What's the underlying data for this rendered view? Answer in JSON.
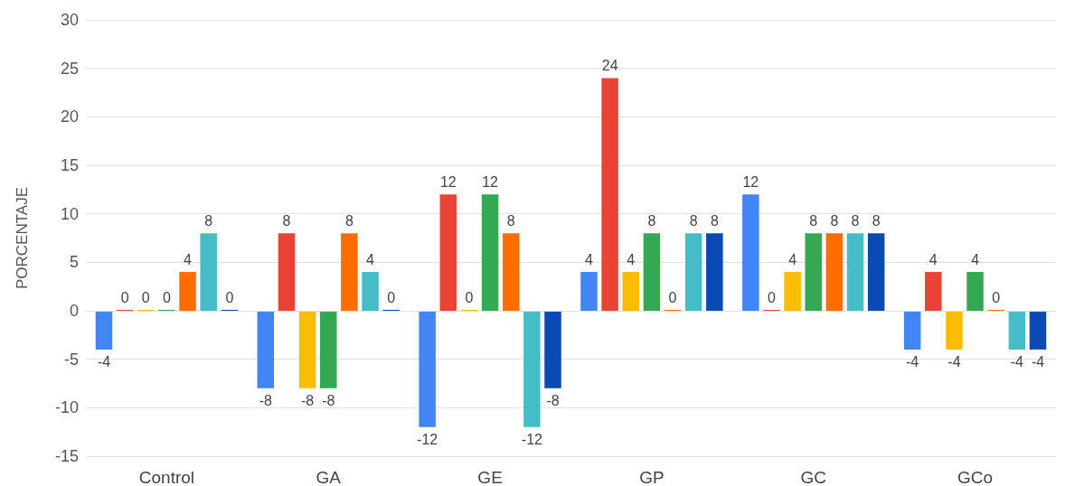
{
  "chart_data": {
    "type": "bar",
    "ylabel": "PORCENTAJE",
    "categories": [
      "Control",
      "GA",
      "GE",
      "GP",
      "GC",
      "GCo"
    ],
    "series": [
      {
        "color": "#4285f4",
        "values": [
          -4,
          -8,
          -12,
          4,
          12,
          -4
        ]
      },
      {
        "color": "#ea4335",
        "values": [
          0,
          8,
          12,
          24,
          0,
          4
        ]
      },
      {
        "color": "#fbbc04",
        "values": [
          0,
          -8,
          0,
          4,
          4,
          -4
        ]
      },
      {
        "color": "#34a853",
        "values": [
          0,
          -8,
          12,
          8,
          8,
          4
        ]
      },
      {
        "color": "#ff6d01",
        "values": [
          4,
          8,
          8,
          0,
          8,
          0
        ]
      },
      {
        "color": "#46bdc6",
        "values": [
          8,
          4,
          -12,
          8,
          8,
          -4
        ]
      },
      {
        "color": "#0b49b4",
        "values": [
          0,
          0,
          -8,
          8,
          8,
          -4
        ]
      }
    ],
    "ylim": [
      -15,
      30
    ],
    "yticks": [
      -15,
      -10,
      -5,
      0,
      5,
      10,
      15,
      20,
      25,
      30
    ],
    "grid": "y",
    "data_labels": true
  }
}
